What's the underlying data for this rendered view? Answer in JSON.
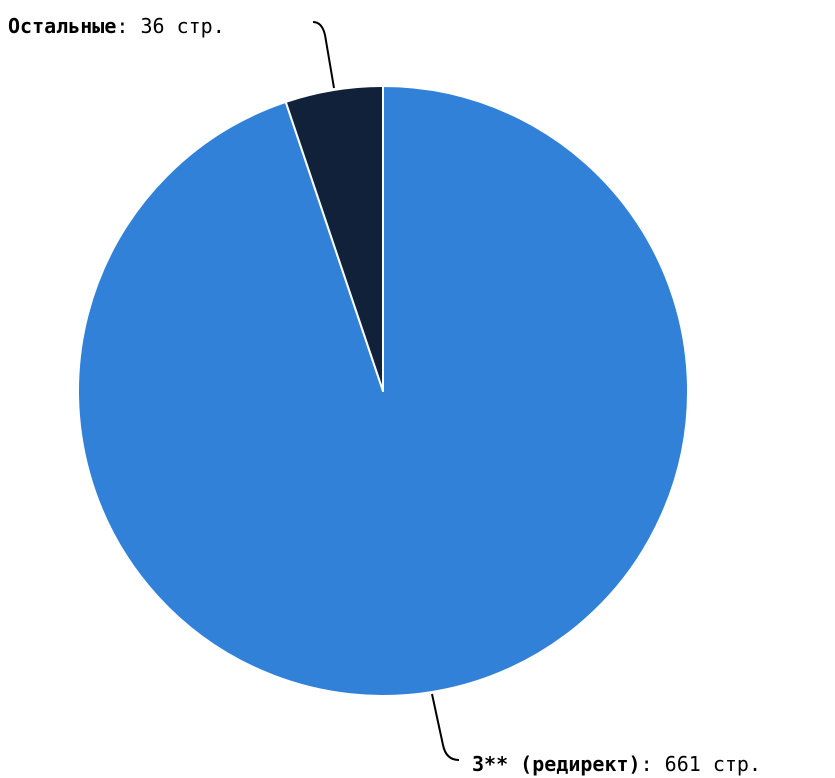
{
  "chart_data": {
    "type": "pie",
    "slices": [
      {
        "name": "3** (редирект)",
        "value": 661,
        "value_text": "661 стр.",
        "color": "#3181d9"
      },
      {
        "name": "Остальные",
        "value": 36,
        "value_text": "36 стр.",
        "color": "#11213a"
      }
    ],
    "start_angle": "12 o'clock",
    "direction": "clockwise",
    "slice_border_color": "#ffffff",
    "legend": "none",
    "label_style": "outside labels with leader lines"
  }
}
